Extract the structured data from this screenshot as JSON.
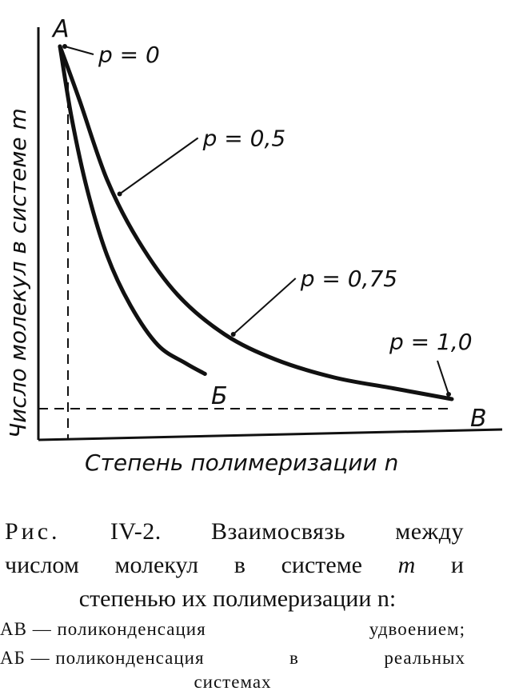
{
  "chart_data": {
    "type": "line",
    "xlabel": "Степень полимеризации n",
    "ylabel": "Число молекул в системе m",
    "point_labels": {
      "start": "А",
      "end_ideal": "В",
      "end_real": "Б"
    },
    "curves": [
      {
        "name": "АВ",
        "points": [
          [
            0.0,
            1.0
          ],
          [
            0.05,
            0.85
          ],
          [
            0.12,
            0.63
          ],
          [
            0.2,
            0.46
          ],
          [
            0.3,
            0.31
          ],
          [
            0.42,
            0.2
          ],
          [
            0.55,
            0.13
          ],
          [
            0.7,
            0.08
          ],
          [
            0.85,
            0.05
          ],
          [
            1.0,
            0.02
          ]
        ]
      },
      {
        "name": "АБ",
        "points": [
          [
            0.0,
            1.0
          ],
          [
            0.03,
            0.8
          ],
          [
            0.07,
            0.6
          ],
          [
            0.12,
            0.42
          ],
          [
            0.18,
            0.28
          ],
          [
            0.25,
            0.17
          ],
          [
            0.32,
            0.12
          ],
          [
            0.37,
            0.09
          ]
        ]
      }
    ],
    "annotations": [
      {
        "text": "p = 0",
        "x": 0.0,
        "y": 1.0
      },
      {
        "text": "p = 0,5",
        "x": 0.14,
        "y": 0.59
      },
      {
        "text": "p = 0,75",
        "x": 0.43,
        "y": 0.2
      },
      {
        "text": "p = 1,0",
        "x": 1.0,
        "y": 0.02
      }
    ],
    "reference_lines": {
      "horizontal_y": 0.02,
      "vertical_x": 0.0
    },
    "xlim": [
      0,
      1
    ],
    "ylim": [
      0,
      1
    ]
  },
  "caption": {
    "line1": [
      "Рис.",
      "IV-2.",
      "Взаимосвязь",
      "между"
    ],
    "line2": [
      "числом",
      "молекул",
      "в",
      "системе",
      "m",
      "и"
    ],
    "line3": "степенью их полимеризации n:",
    "line4": [
      "АВ — поликонденсация",
      "удвоением;"
    ],
    "line5": [
      "АБ — поликонденсация",
      "в",
      "реальных"
    ],
    "line6": "системах"
  }
}
